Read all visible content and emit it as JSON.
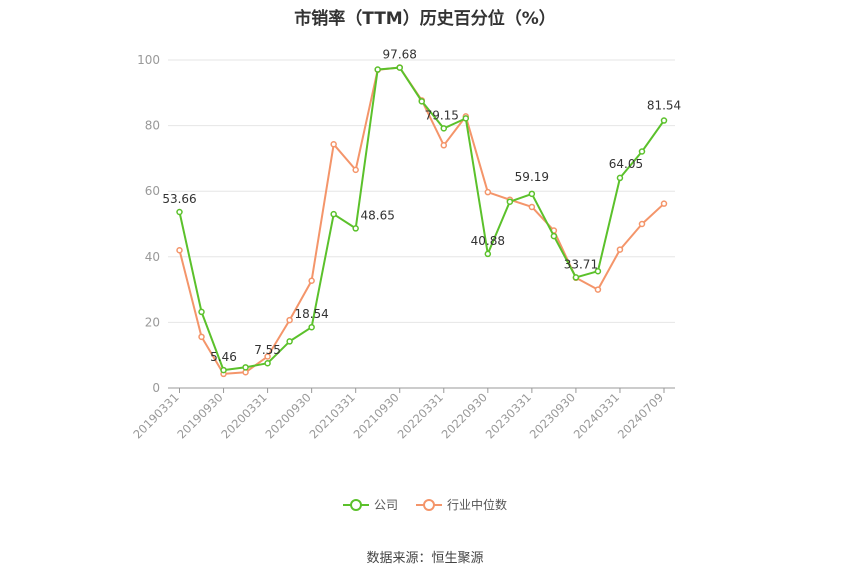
{
  "chart_data": {
    "type": "line",
    "title": "市销率（TTM）历史百分位（%）",
    "ylim": [
      0,
      100
    ],
    "y_ticks": [
      0,
      20,
      40,
      60,
      80,
      100
    ],
    "grid": true,
    "legend_position": "bottom",
    "x_tick_labels": [
      "20190331",
      "20190930",
      "20200331",
      "20200930",
      "20210331",
      "20210930",
      "20220331",
      "20220930",
      "20230331",
      "20230930",
      "20240331",
      "20240709"
    ],
    "x": [
      "20190331",
      "20190630",
      "20190930",
      "20191231",
      "20200331",
      "20200630",
      "20200930",
      "20201231",
      "20210331",
      "20210630",
      "20210930",
      "20211231",
      "20220331",
      "20220630",
      "20220930",
      "20221231",
      "20230331",
      "20230630",
      "20230930",
      "20231231",
      "20240331",
      "20240630",
      "20240709"
    ],
    "series": [
      {
        "name": "公司",
        "color": "#5bc12b",
        "values": [
          53.66,
          23.2,
          5.46,
          6.3,
          7.55,
          14.2,
          18.54,
          53.0,
          48.65,
          97.1,
          97.68,
          87.4,
          79.15,
          82.2,
          40.88,
          56.8,
          59.19,
          46.3,
          33.71,
          35.6,
          64.05,
          72.1,
          81.54
        ],
        "data_labels": [
          {
            "index": 0,
            "text": "53.66"
          },
          {
            "index": 2,
            "text": "5.46"
          },
          {
            "index": 4,
            "text": "7.55"
          },
          {
            "index": 6,
            "text": "18.54"
          },
          {
            "index": 8,
            "text": "48.65"
          },
          {
            "index": 10,
            "text": "97.68"
          },
          {
            "index": 12,
            "text": "79.15"
          },
          {
            "index": 14,
            "text": "40.88"
          },
          {
            "index": 16,
            "text": "59.19"
          },
          {
            "index": 18,
            "text": "33.71"
          },
          {
            "index": 20,
            "text": "64.05"
          },
          {
            "index": 22,
            "text": "81.54"
          }
        ]
      },
      {
        "name": "行业中位数",
        "color": "#f4956a",
        "values": [
          42.0,
          15.6,
          4.3,
          4.8,
          9.6,
          20.7,
          32.7,
          74.3,
          66.5,
          97.0,
          97.7,
          87.7,
          74.0,
          82.8,
          59.7,
          57.4,
          55.2,
          48.0,
          33.6,
          30.0,
          42.2,
          50.0,
          56.2
        ]
      }
    ]
  },
  "legend": {
    "items": [
      {
        "label": "公司",
        "color": "#5bc12b"
      },
      {
        "label": "行业中位数",
        "color": "#f4956a"
      }
    ]
  },
  "source": "数据来源：恒生聚源"
}
